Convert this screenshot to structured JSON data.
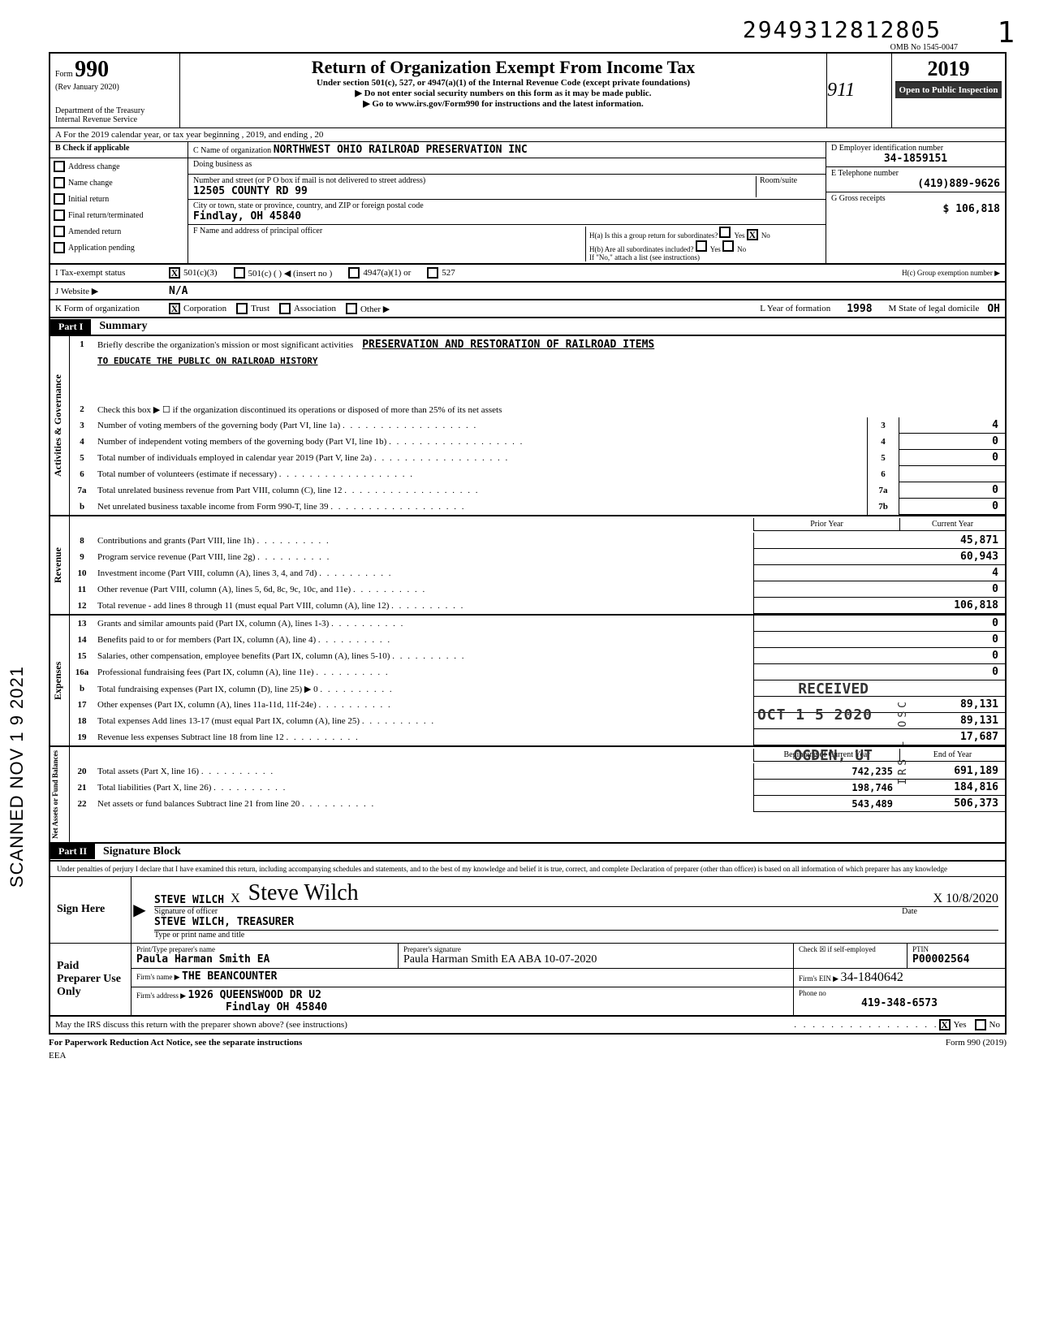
{
  "doc_number": "2949312812805",
  "side_page": "1",
  "omb": "OMB No 1545-0047",
  "form_label": "Form",
  "form_number": "990",
  "rev": "(Rev January 2020)",
  "dept1": "Department of the Treasury",
  "dept2": "Internal Revenue Service",
  "main_title": "Return of Organization Exempt From Income Tax",
  "sub_title": "Under section 501(c), 527, or 4947(a)(1) of the Internal Revenue Code (except private foundations)",
  "warn1": "▶ Do not enter social security numbers on this form as it may be made public.",
  "warn2": "▶ Go to www.irs.gov/Form990 for instructions and the latest information.",
  "year": "2019",
  "open_public": "Open to Public Inspection",
  "row_a": "A   For the 2019 calendar year, or tax year beginning                                                                                    , 2019, and ending                                                              , 20",
  "b_header": "B   Check if applicable",
  "checks": [
    "Address change",
    "Name change",
    "Initial return",
    "Final return/terminated",
    "Amended return",
    "Application pending"
  ],
  "c_name_label": "C  Name of organization",
  "c_name": "NORTHWEST OHIO RAILROAD PRESERVATION INC",
  "dba_label": "Doing business as",
  "addr_label": "Number and street (or P O  box if mail is not delivered to street address)",
  "room_label": "Room/suite",
  "addr": "12505 COUNTY RD  99",
  "city_label": "City or town, state or province, country, and ZIP or foreign postal code",
  "city": "Findlay, OH 45840",
  "f_label": "F  Name and address of principal officer",
  "d_label": "D  Employer identification number",
  "ein": "34-1859151",
  "e_label": "E  Telephone number",
  "phone": "(419)889-9626",
  "g_label": "G  Gross receipts",
  "gross": "106,818",
  "ha_label": "H(a) Is this a group return for subordinates?",
  "hb_label": "H(b) Are all subordinates included?",
  "h_note": "If \"No,\" attach a list (see instructions)",
  "hc_label": "H(c)  Group exemption number  ▶",
  "yes": "Yes",
  "no": "No",
  "i_label": "I       Tax-exempt status",
  "i_501c3": "501(c)(3)",
  "i_501c": "501(c) (          ) ◀ (insert no )",
  "i_4947": "4947(a)(1) or",
  "i_527": "527",
  "j_label": "J       Website  ▶",
  "website": "N/A",
  "k_label": "K      Form of organization",
  "k_corp": "Corporation",
  "k_trust": "Trust",
  "k_assoc": "Association",
  "k_other": "Other ▶",
  "l_label": "L  Year of formation",
  "l_year": "1998",
  "m_label": "M  State of legal domicile",
  "m_state": "OH",
  "part1": "Part I",
  "part1_title": "Summary",
  "mission_label": "Briefly describe the organization's mission or most significant activities",
  "mission1": "PRESERVATION AND RESTORATION OF RAILROAD ITEMS",
  "mission2": "TO EDUCATE THE PUBLIC ON RAILROAD HISTORY",
  "line2": "Check this box ▶ ☐  if the organization discontinued its operations or disposed of more than 25% of its net assets",
  "vert_activities": "Activities & Governance",
  "vert_revenue": "Revenue",
  "vert_expenses": "Expenses",
  "vert_netassets": "Net Assets or\nFund Balances",
  "lines_ag": [
    {
      "n": "3",
      "t": "Number of voting members of the governing body (Part VI, line 1a)",
      "b": "3",
      "v": "4"
    },
    {
      "n": "4",
      "t": "Number of independent voting members of the governing body (Part VI, line 1b)",
      "b": "4",
      "v": "0"
    },
    {
      "n": "5",
      "t": "Total number of individuals employed in calendar year 2019 (Part V, line 2a)",
      "b": "5",
      "v": "0"
    },
    {
      "n": "6",
      "t": "Total number of volunteers (estimate if necessary)",
      "b": "6",
      "v": ""
    },
    {
      "n": "7a",
      "t": "Total unrelated business revenue from Part VIII, column (C), line 12",
      "b": "7a",
      "v": "0"
    },
    {
      "n": "b",
      "t": "Net unrelated business taxable income from Form 990-T, line 39",
      "b": "7b",
      "v": "0"
    }
  ],
  "prior_header": "Prior Year",
  "current_header": "Current Year",
  "lines_rev": [
    {
      "n": "8",
      "t": "Contributions and grants (Part VIII, line 1h)",
      "p": "",
      "c": "45,871"
    },
    {
      "n": "9",
      "t": "Program service revenue (Part VIII, line 2g)",
      "p": "",
      "c": "60,943"
    },
    {
      "n": "10",
      "t": "Investment income (Part VIII, column (A), lines 3, 4, and 7d)",
      "p": "",
      "c": "4"
    },
    {
      "n": "11",
      "t": "Other revenue (Part VIII, column (A), lines 5, 6d, 8c, 9c, 10c, and 11e)",
      "p": "",
      "c": "0"
    },
    {
      "n": "12",
      "t": "Total revenue - add lines 8 through 11 (must equal Part VIII, column (A), line 12)",
      "p": "",
      "c": "106,818"
    }
  ],
  "lines_exp": [
    {
      "n": "13",
      "t": "Grants and similar amounts paid (Part IX, column (A), lines 1-3)",
      "p": "",
      "c": "0"
    },
    {
      "n": "14",
      "t": "Benefits paid to or for members (Part IX, column (A), line 4)",
      "p": "",
      "c": "0"
    },
    {
      "n": "15",
      "t": "Salaries, other compensation, employee benefits (Part IX, column (A), lines 5-10)",
      "p": "",
      "c": "0"
    },
    {
      "n": "16a",
      "t": "Professional fundraising fees (Part IX, column (A), line 11e)",
      "p": "",
      "c": "0"
    },
    {
      "n": "b",
      "t": "Total fundraising expenses (Part IX, column (D), line 25)   ▶                                          0",
      "p": "",
      "c": ""
    },
    {
      "n": "17",
      "t": "Other expenses (Part IX, column (A), lines 11a-11d, 11f-24e)",
      "p": "",
      "c": "89,131"
    },
    {
      "n": "18",
      "t": "Total expenses  Add lines 13-17 (must equal Part IX, column (A), line 25)",
      "p": "",
      "c": "89,131"
    },
    {
      "n": "19",
      "t": "Revenue less expenses  Subtract line 18 from line 12",
      "p": "",
      "c": "17,687"
    }
  ],
  "begin_header": "Beginning of Current Year",
  "end_header": "End of Year",
  "lines_net": [
    {
      "n": "20",
      "t": "Total assets (Part X, line 16)",
      "p": "742,235",
      "c": "691,189"
    },
    {
      "n": "21",
      "t": "Total liabilities (Part X, line 26)",
      "p": "198,746",
      "c": "184,816"
    },
    {
      "n": "22",
      "t": "Net assets or fund balances  Subtract line 21 from line 20",
      "p": "543,489",
      "c": "506,373"
    }
  ],
  "part2": "Part II",
  "part2_title": "Signature Block",
  "perjury": "Under penalties of perjury I declare that I have examined this return, including accompanying schedules and statements, and to the best of my knowledge and belief it is true, correct, and complete Declaration of preparer (other than officer) is based on all information of which preparer has any knowledge",
  "sign_here": "Sign Here",
  "officer_name": "STEVE WILCH",
  "sig_of_officer": "Signature of officer",
  "sig_date": "10/8/2020",
  "date_label": "Date",
  "officer_title": "STEVE WILCH, TREASURER",
  "type_label": "Type or print name and title",
  "paid_label": "Paid Preparer Use Only",
  "prep_name_label": "Print/Type preparer's name",
  "prep_sig_label": "Preparer's signature",
  "prep_name": "Paula Harman Smith EA",
  "prep_sig": "Paula Harman Smith EA   ABA 10-07-2020",
  "check_self": "Check ☒ if self-employed",
  "ptin_label": "PTIN",
  "ptin": "P00002564",
  "firm_name_label": "Firm's name    ▶",
  "firm_name": "THE BEANCOUNTER",
  "firm_ein_label": "Firm's EIN  ▶",
  "firm_ein": "34-1840642",
  "firm_addr_label": "Firm's address ▶",
  "firm_addr1": "1926 QUEENSWOOD DR U2",
  "firm_addr2": "Findlay OH 45840",
  "phone_no_label": "Phone no",
  "prep_phone": "419-348-6573",
  "discuss": "May the IRS discuss this return with the preparer shown above? (see instructions)",
  "paperwork": "For Paperwork Reduction Act Notice, see the separate instructions",
  "form_footer": "Form 990 (2019)",
  "eea": "EEA",
  "scanned": "SCANNED NOV 1 9 2021",
  "stamp_received": "RECEIVED",
  "stamp_date": "OCT 1 5 2020",
  "stamp_ogden": "OGDEN, UT",
  "stamp_irs": "IRS - OSC"
}
